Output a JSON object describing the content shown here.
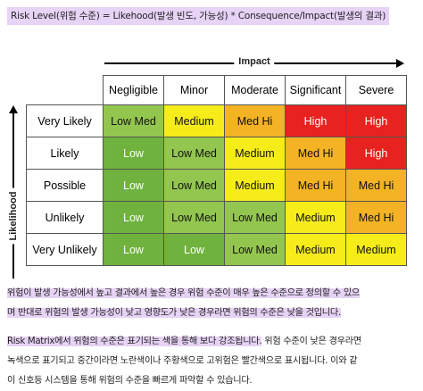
{
  "formula": "Risk Level(위험 수준) = Likehood(발생 빈도, 가능성) * Consequence/Impact(발생의 결과)",
  "axes": {
    "impact": "Impact",
    "likelihood": "Likelihood"
  },
  "columns": [
    "Negligible",
    "Minor",
    "Moderate",
    "Significant",
    "Severe"
  ],
  "rows": [
    {
      "label": "Very Likely",
      "cells": [
        "Low Med",
        "Medium",
        "Med Hi",
        "High",
        "High"
      ]
    },
    {
      "label": "Likely",
      "cells": [
        "Low",
        "Low Med",
        "Medium",
        "Med Hi",
        "High"
      ]
    },
    {
      "label": "Possible",
      "cells": [
        "Low",
        "Low Med",
        "Medium",
        "Med Hi",
        "Med Hi"
      ]
    },
    {
      "label": "Unlikely",
      "cells": [
        "Low",
        "Low Med",
        "Low Med",
        "Medium",
        "Med Hi"
      ]
    },
    {
      "label": "Very Unlikely",
      "cells": [
        "Low",
        "Low",
        "Low Med",
        "Medium",
        "Medium"
      ]
    }
  ],
  "level_colors": {
    "Low": "#6fb23d",
    "Low Med": "#93c64f",
    "Medium": "#f5ec1a",
    "Med Hi": "#f4b324",
    "High": "#e8221f"
  },
  "highlight_color": "#e7d3f6",
  "paragraph1": {
    "line1": "위험이 발생 가능성에서 높고 결과에서 높은 경우 위험 수준이 매우 높은 수준으로 정의할 수 있으",
    "line2": "며 반대로 위험의 발생 가능성이 낮고 영향도가 낮은 경우라면 위험의 수준은 낮을 것입니다."
  },
  "paragraph2": {
    "highlighted": "Risk Matrix에서 위험의 수준은 표기되는 색을 통해 보다 강조됩니다.",
    "rest1": " 위험 수준이 낮은 경우라면",
    "line2": "녹색으로 표기되고 중간이라면 노란색이나 주황색으로 고위험은 빨간색으로 표시됩니다. 이와 같",
    "line3": "이 신호등 시스템을 통해 위험의 수준을 빠르게 파악할 수 있습니다."
  }
}
